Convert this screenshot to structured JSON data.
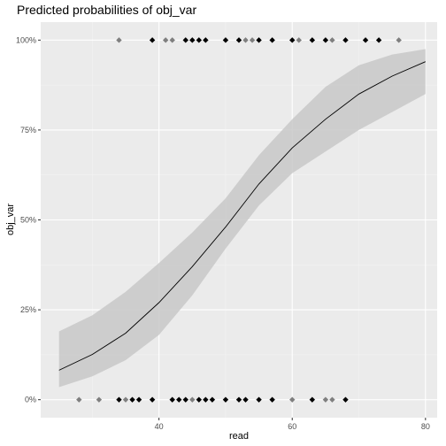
{
  "chart_data": {
    "type": "line",
    "title": "Predicted probabilities of obj_var",
    "xlabel": "read",
    "ylabel": "obj_var",
    "xlim": [
      22.25,
      81.75
    ],
    "ylim": [
      -0.05,
      1.05
    ],
    "x_ticks": [
      40,
      60,
      80
    ],
    "x_tick_labels": [
      "40",
      "60",
      "80"
    ],
    "y_ticks": [
      0,
      0.25,
      0.5,
      0.75,
      1
    ],
    "y_tick_labels": [
      "0%",
      "25%",
      "50%",
      "75%",
      "100%"
    ],
    "grid": true,
    "legend": "none",
    "curve": {
      "x": [
        25,
        30,
        35,
        40,
        45,
        50,
        55,
        60,
        65,
        70,
        75,
        80
      ],
      "y": [
        0.082,
        0.126,
        0.185,
        0.27,
        0.37,
        0.48,
        0.6,
        0.7,
        0.78,
        0.85,
        0.9,
        0.94
      ],
      "ci_low": [
        0.035,
        0.065,
        0.11,
        0.18,
        0.29,
        0.42,
        0.54,
        0.63,
        0.69,
        0.75,
        0.8,
        0.85
      ],
      "ci_high": [
        0.19,
        0.235,
        0.3,
        0.38,
        0.465,
        0.56,
        0.68,
        0.78,
        0.87,
        0.93,
        0.96,
        0.975
      ]
    },
    "points": [
      {
        "x": 34,
        "y": 1,
        "shade": "#7f7f7f"
      },
      {
        "x": 39,
        "y": 1,
        "shade": "#000000"
      },
      {
        "x": 41,
        "y": 1,
        "shade": "#7f7f7f"
      },
      {
        "x": 42,
        "y": 1,
        "shade": "#7f7f7f"
      },
      {
        "x": 44,
        "y": 1,
        "shade": "#000000"
      },
      {
        "x": 45,
        "y": 1,
        "shade": "#000000"
      },
      {
        "x": 46,
        "y": 1,
        "shade": "#000000"
      },
      {
        "x": 47,
        "y": 1,
        "shade": "#000000"
      },
      {
        "x": 50,
        "y": 1,
        "shade": "#000000"
      },
      {
        "x": 52,
        "y": 1,
        "shade": "#000000"
      },
      {
        "x": 53,
        "y": 1,
        "shade": "#7f7f7f"
      },
      {
        "x": 54,
        "y": 1,
        "shade": "#7f7f7f"
      },
      {
        "x": 55,
        "y": 1,
        "shade": "#000000"
      },
      {
        "x": 57,
        "y": 1,
        "shade": "#000000"
      },
      {
        "x": 60,
        "y": 1,
        "shade": "#000000"
      },
      {
        "x": 61,
        "y": 1,
        "shade": "#7f7f7f"
      },
      {
        "x": 63,
        "y": 1,
        "shade": "#000000"
      },
      {
        "x": 65,
        "y": 1,
        "shade": "#000000"
      },
      {
        "x": 66,
        "y": 1,
        "shade": "#7f7f7f"
      },
      {
        "x": 68,
        "y": 1,
        "shade": "#000000"
      },
      {
        "x": 71,
        "y": 1,
        "shade": "#000000"
      },
      {
        "x": 73,
        "y": 1,
        "shade": "#000000"
      },
      {
        "x": 76,
        "y": 1,
        "shade": "#7f7f7f"
      },
      {
        "x": 28,
        "y": 0,
        "shade": "#7f7f7f"
      },
      {
        "x": 31,
        "y": 0,
        "shade": "#7f7f7f"
      },
      {
        "x": 34,
        "y": 0,
        "shade": "#000000"
      },
      {
        "x": 35,
        "y": 0,
        "shade": "#7f7f7f"
      },
      {
        "x": 36,
        "y": 0,
        "shade": "#000000"
      },
      {
        "x": 37,
        "y": 0,
        "shade": "#000000"
      },
      {
        "x": 39,
        "y": 0,
        "shade": "#000000"
      },
      {
        "x": 42,
        "y": 0,
        "shade": "#000000"
      },
      {
        "x": 43,
        "y": 0,
        "shade": "#000000"
      },
      {
        "x": 44,
        "y": 0,
        "shade": "#000000"
      },
      {
        "x": 45,
        "y": 0,
        "shade": "#7f7f7f"
      },
      {
        "x": 46,
        "y": 0,
        "shade": "#000000"
      },
      {
        "x": 47,
        "y": 0,
        "shade": "#000000"
      },
      {
        "x": 48,
        "y": 0,
        "shade": "#000000"
      },
      {
        "x": 50,
        "y": 0,
        "shade": "#000000"
      },
      {
        "x": 52,
        "y": 0,
        "shade": "#000000"
      },
      {
        "x": 53,
        "y": 0,
        "shade": "#000000"
      },
      {
        "x": 55,
        "y": 0,
        "shade": "#000000"
      },
      {
        "x": 57,
        "y": 0,
        "shade": "#000000"
      },
      {
        "x": 60,
        "y": 0,
        "shade": "#7f7f7f"
      },
      {
        "x": 63,
        "y": 0,
        "shade": "#000000"
      },
      {
        "x": 65,
        "y": 0,
        "shade": "#7f7f7f"
      },
      {
        "x": 66,
        "y": 0,
        "shade": "#7f7f7f"
      },
      {
        "x": 68,
        "y": 0,
        "shade": "#000000"
      }
    ],
    "colors": {
      "panel_background": "#ebebeb",
      "grid_major": "#ffffff",
      "grid_minor": "#f3f3f3",
      "ci_band": "#c8c8c8",
      "line": "#000000"
    }
  }
}
